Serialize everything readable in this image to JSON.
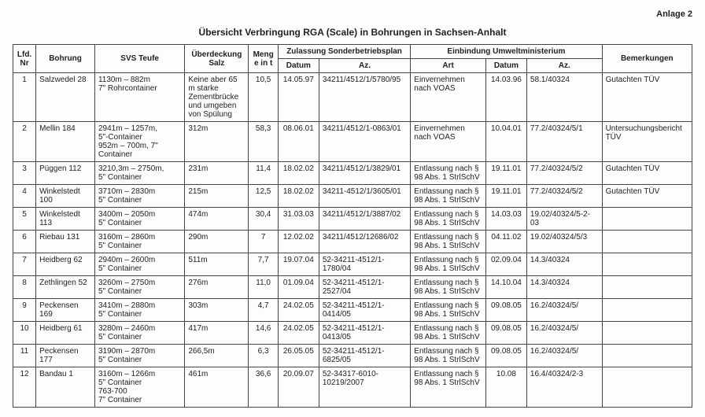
{
  "anlage": "Anlage 2",
  "title": "Übersicht Verbringung RGA (Scale) in Bohrungen in Sachsen-Anhalt",
  "headers": {
    "lfd": "Lfd. Nr",
    "bohrung": "Bohrung",
    "svs": "SVS Teufe",
    "ueberdeckung": "Überdeckung Salz",
    "menge": "Menge in t",
    "zulassung": "Zulassung Sonderbetriebsplan",
    "zdatum": "Datum",
    "zaz": "Az.",
    "einbindung": "Einbindung Umweltministerium",
    "art": "Art",
    "edatum": "Datum",
    "eaz": "Az.",
    "bemerkungen": "Bemerkungen"
  },
  "rows": [
    {
      "nr": "1",
      "bohrung": "Salzwedel 28",
      "svs": "1130m – 882m\n7\" Rohrcontainer",
      "ueb": "Keine aber 65 m starke Zementbrücke und umgeben von Spülung",
      "menge": "10,5",
      "zdat": "14.05.97",
      "zaz": "34211/4512/1/5780/95",
      "art": "Einvernehmen nach VOAS",
      "edat": "14.03.96",
      "eaz": "58.1/40324",
      "bem": "Gutachten TÜV"
    },
    {
      "nr": "2",
      "bohrung": "Mellin 184",
      "svs": "2941m – 1257m,\n5\"-Container\n952m – 700m, 7\" Container",
      "ueb": "312m",
      "menge": "58,3",
      "zdat": "08.06.01",
      "zaz": "34211/4512/1-0863/01",
      "art": "Einvernehmen nach VOAS",
      "edat": "10.04.01",
      "eaz": "77.2/40324/5/1",
      "bem": "Untersuchungsbericht TÜV"
    },
    {
      "nr": "3",
      "bohrung": "Püggen 112",
      "svs": "3210,3m – 2750m,\n5\" Container",
      "ueb": "231m",
      "menge": "11,4",
      "zdat": "18.02.02",
      "zaz": "34211/4512/1/3829/01",
      "art": "Entlassung nach § 98 Abs. 1 StrlSchV",
      "edat": "19.11.01",
      "eaz": "77.2/40324/5/2",
      "bem": "Gutachten TÜV"
    },
    {
      "nr": "4",
      "bohrung": "Winkelstedt 100",
      "svs": "3710m – 2830m\n5\" Container",
      "ueb": "215m",
      "menge": "12,5",
      "zdat": "18.02.02",
      "zaz": "34211-4512/1/3605/01",
      "art": "Entlassung nach § 98 Abs. 1 StrlSchV",
      "edat": "19.11.01",
      "eaz": "77.2/40324/5/2",
      "bem": "Gutachten TÜV"
    },
    {
      "nr": "5",
      "bohrung": "Winkelstedt 113",
      "svs": "3400m – 2050m\n5\" Container",
      "ueb": "474m",
      "menge": "30,4",
      "zdat": "31.03.03",
      "zaz": "34211/4512/1/3887/02",
      "art": "Entlassung nach § 98 Abs. 1 StrlSchV",
      "edat": "14.03.03",
      "eaz": "19.02/40324/5-2-03",
      "bem": ""
    },
    {
      "nr": "6",
      "bohrung": "Riebau 131",
      "svs": "3160m – 2860m\n5\" Container",
      "ueb": "290m",
      "menge": "7",
      "zdat": "12.02.02",
      "zaz": "34211/4512/12686/02",
      "art": "Entlassung nach § 98 Abs. 1 StrlSchV",
      "edat": "04.11.02",
      "eaz": "19.02/40324/5/3",
      "bem": ""
    },
    {
      "nr": "7",
      "bohrung": "Heidberg 62",
      "svs": "2940m – 2600m\n5\" Container",
      "ueb": "511m",
      "menge": "7,7",
      "zdat": "19.07.04",
      "zaz": "52-34211-4512/1-1780/04",
      "art": "Entlassung nach § 98 Abs. 1 StrlSchV",
      "edat": "02.09.04",
      "eaz": "14.3/40324",
      "bem": ""
    },
    {
      "nr": "8",
      "bohrung": "Zethlingen 52",
      "svs": "3260m – 2750m\n5\" Container",
      "ueb": "276m",
      "menge": "11,0",
      "zdat": "01.09.04",
      "zaz": "52-34211-4512/1-2527/04",
      "art": "Entlassung nach § 98 Abs. 1 StrlSchV",
      "edat": "14.10.04",
      "eaz": "14.3/40324",
      "bem": ""
    },
    {
      "nr": "9",
      "bohrung": "Peckensen 169",
      "svs": "3410m – 2880m\n5\" Container",
      "ueb": "303m",
      "menge": "4,7",
      "zdat": "24.02.05",
      "zaz": "52-34211-4512/1-0414/05",
      "art": "Entlassung nach § 98 Abs. 1 StrlSchV",
      "edat": "09.08.05",
      "eaz": "16.2/40324/5/",
      "bem": ""
    },
    {
      "nr": "10",
      "bohrung": "Heidberg 61",
      "svs": "3280m – 2460m\n5\" Container",
      "ueb": "417m",
      "menge": "14,6",
      "zdat": "24.02.05",
      "zaz": "52-34211-4512/1-0413/05",
      "art": "Entlassung nach § 98 Abs. 1 StrlSchV",
      "edat": "09.08.05",
      "eaz": "16.2/40324/5/",
      "bem": ""
    },
    {
      "nr": "11",
      "bohrung": "Peckensen 177",
      "svs": "3190m – 2870m\n5\" Container",
      "ueb": "266,5m",
      "menge": "6,3",
      "zdat": "26.05.05",
      "zaz": "52-34211-4512/1-6825/05",
      "art": "Entlassung nach § 98 Abs. 1 StrlSchV",
      "edat": "09.08.05",
      "eaz": "16.2/40324/5/",
      "bem": ""
    },
    {
      "nr": "12",
      "bohrung": "Bandau 1",
      "svs": "3160m – 1266m\n5\" Container\n763-700\n7\" Container",
      "ueb": "461m",
      "menge": "36,6",
      "zdat": "20.09.07",
      "zaz": "52-34317-6010-10219/2007",
      "art": "Entlassung nach § 98 Abs. 1 StrlSchV",
      "edat": "10.08",
      "eaz": "16.4/40324/2-3",
      "bem": ""
    }
  ]
}
